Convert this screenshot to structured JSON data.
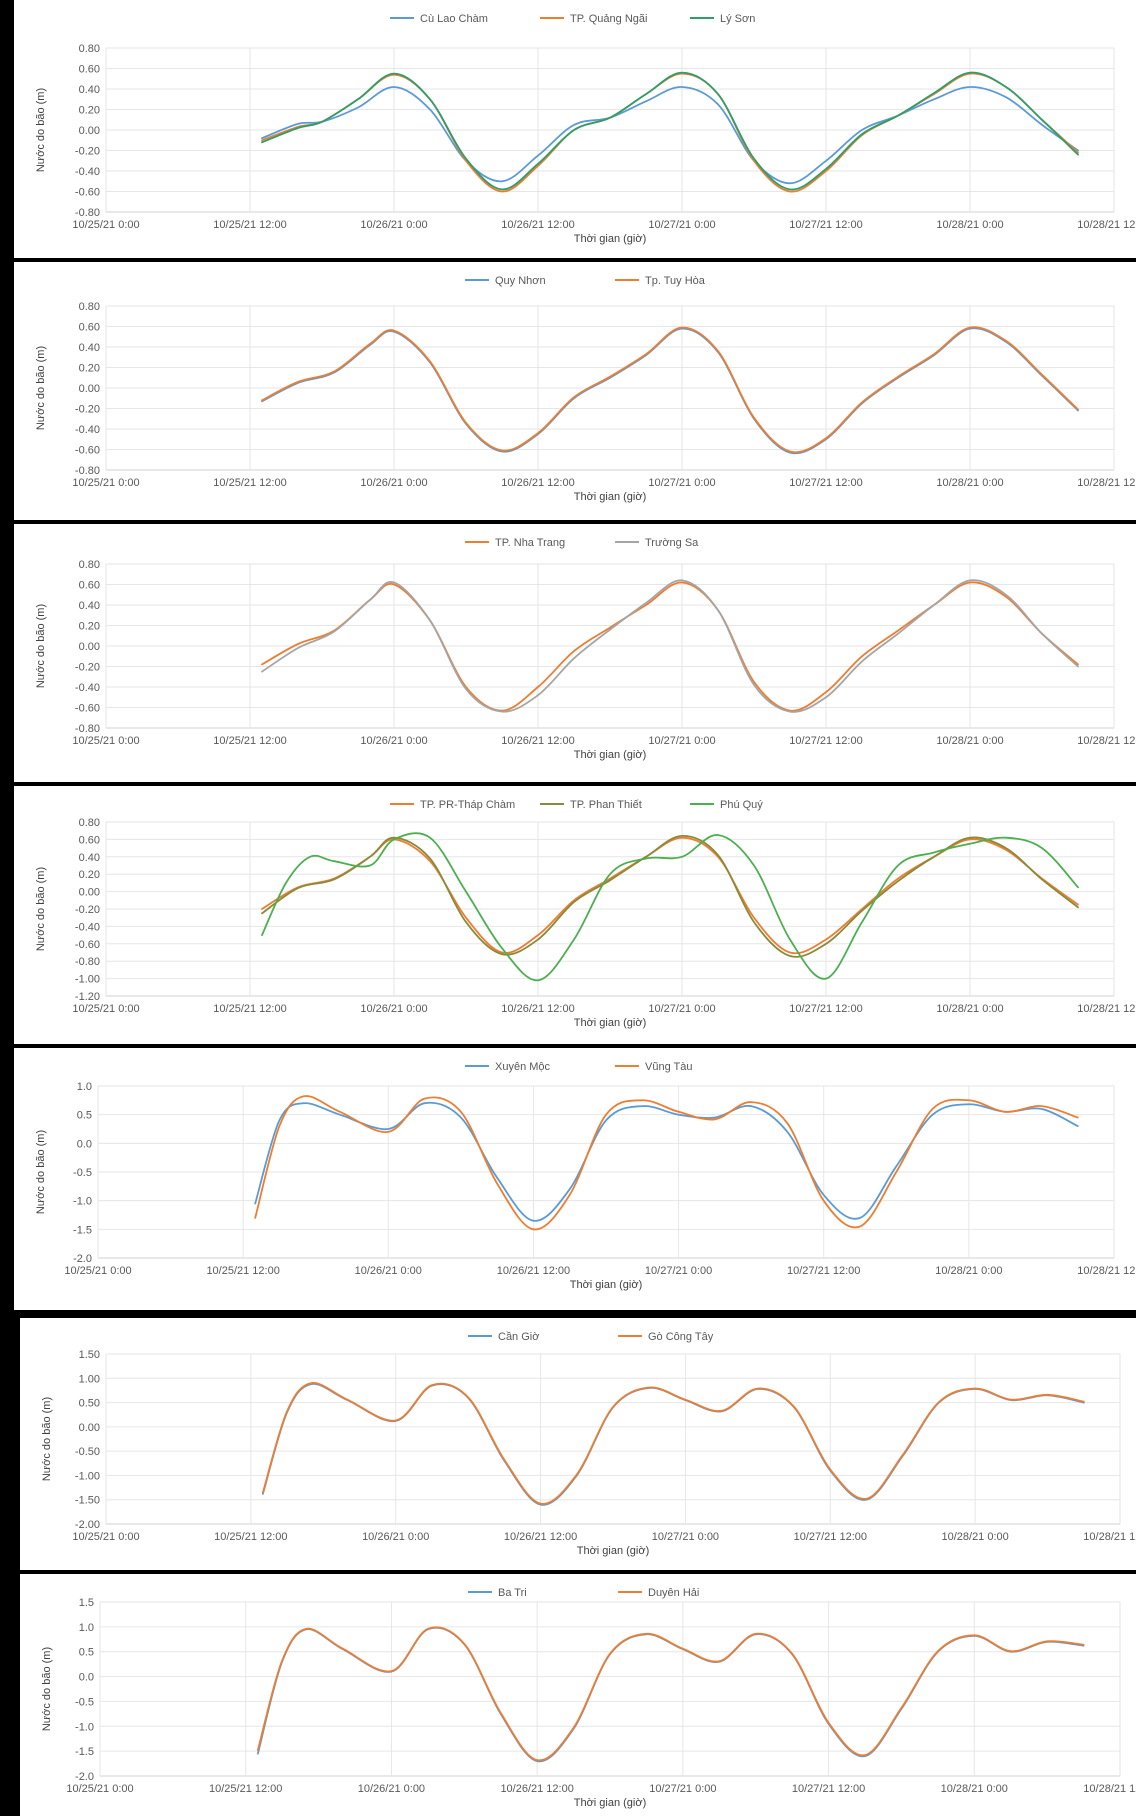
{
  "chart_data": [
    {
      "type": "line",
      "legend_position": "top",
      "xlabel": "Thời gian (giờ)",
      "ylabel": "Nước do bão (m)",
      "x_ticks": [
        "10/25/21 0:00",
        "10/25/21 12:00",
        "10/26/21 0:00",
        "10/26/21 12:00",
        "10/27/21 0:00",
        "10/27/21 12:00",
        "10/28/21 0:00",
        "10/28/21 12:00"
      ],
      "y_ticks": [
        "0.80",
        "0.60",
        "0.40",
        "0.20",
        "0.00",
        "-0.20",
        "-0.40",
        "-0.60",
        "-0.80"
      ],
      "ylim": [
        -0.8,
        0.8
      ],
      "series": [
        {
          "name": "Cù Lao Chàm",
          "color": "#5b9bd5",
          "x": [
            13,
            16,
            18,
            21,
            24,
            27,
            30,
            33,
            36,
            39,
            42,
            45,
            48,
            51,
            54,
            57,
            60,
            63,
            66,
            69,
            72,
            75,
            78,
            81
          ],
          "values": [
            -0.08,
            0.06,
            0.08,
            0.22,
            0.42,
            0.2,
            -0.3,
            -0.5,
            -0.25,
            0.05,
            0.12,
            0.28,
            0.42,
            0.25,
            -0.3,
            -0.52,
            -0.3,
            0.0,
            0.14,
            0.3,
            0.42,
            0.32,
            0.05,
            -0.2
          ]
        },
        {
          "name": "TP. Quảng Ngãi",
          "color": "#ed7d31",
          "x": [
            13,
            16,
            18,
            21,
            24,
            27,
            30,
            33,
            36,
            39,
            42,
            45,
            48,
            51,
            54,
            57,
            60,
            63,
            66,
            69,
            72,
            75,
            78,
            81
          ],
          "values": [
            -0.1,
            0.03,
            0.08,
            0.3,
            0.54,
            0.3,
            -0.3,
            -0.6,
            -0.35,
            0.0,
            0.12,
            0.35,
            0.55,
            0.35,
            -0.3,
            -0.6,
            -0.4,
            -0.05,
            0.14,
            0.35,
            0.55,
            0.42,
            0.1,
            -0.22
          ]
        },
        {
          "name": "Lý Sơn",
          "color": "#2e9e6b",
          "x": [
            13,
            16,
            18,
            21,
            24,
            27,
            30,
            33,
            36,
            39,
            42,
            45,
            48,
            51,
            54,
            57,
            60,
            63,
            66,
            69,
            72,
            75,
            78,
            81
          ],
          "values": [
            -0.12,
            0.02,
            0.08,
            0.3,
            0.55,
            0.3,
            -0.28,
            -0.58,
            -0.33,
            0.0,
            0.12,
            0.35,
            0.56,
            0.35,
            -0.28,
            -0.58,
            -0.38,
            -0.04,
            0.14,
            0.36,
            0.56,
            0.42,
            0.1,
            -0.24
          ]
        }
      ]
    },
    {
      "type": "line",
      "legend_position": "top",
      "xlabel": "Thời gian (giờ)",
      "ylabel": "Nước do bão (m)",
      "x_ticks": [
        "10/25/21 0:00",
        "10/25/21 12:00",
        "10/26/21 0:00",
        "10/26/21 12:00",
        "10/27/21 0:00",
        "10/27/21 12:00",
        "10/28/21 0:00",
        "10/28/21 12:00"
      ],
      "y_ticks": [
        "0.80",
        "0.60",
        "0.40",
        "0.20",
        "0.00",
        "-0.20",
        "-0.40",
        "-0.60",
        "-0.80"
      ],
      "ylim": [
        -0.8,
        0.8
      ],
      "series": [
        {
          "name": "Quy Nhơn",
          "color": "#5b9bd5",
          "x": [
            13,
            16,
            19,
            22,
            24,
            27,
            30,
            33,
            36,
            39,
            42,
            45,
            48,
            51,
            54,
            57,
            60,
            63,
            66,
            69,
            72,
            75,
            78,
            81
          ],
          "values": [
            -0.13,
            0.05,
            0.15,
            0.42,
            0.55,
            0.25,
            -0.35,
            -0.62,
            -0.45,
            -0.1,
            0.1,
            0.32,
            0.58,
            0.35,
            -0.3,
            -0.63,
            -0.5,
            -0.15,
            0.1,
            0.32,
            0.58,
            0.45,
            0.12,
            -0.22
          ]
        },
        {
          "name": "Tp. Tuy Hòa",
          "color": "#ed7d31",
          "x": [
            13,
            16,
            19,
            22,
            24,
            27,
            30,
            33,
            36,
            39,
            42,
            45,
            48,
            51,
            54,
            57,
            60,
            63,
            66,
            69,
            72,
            75,
            78,
            81
          ],
          "values": [
            -0.12,
            0.06,
            0.16,
            0.43,
            0.56,
            0.26,
            -0.34,
            -0.61,
            -0.44,
            -0.09,
            0.11,
            0.33,
            0.59,
            0.36,
            -0.29,
            -0.62,
            -0.49,
            -0.14,
            0.11,
            0.33,
            0.59,
            0.46,
            0.13,
            -0.21
          ]
        }
      ]
    },
    {
      "type": "line",
      "legend_position": "top",
      "xlabel": "Thời gian (giờ)",
      "ylabel": "Nước do bão (m)",
      "x_ticks": [
        "10/25/21 0:00",
        "10/25/21 12:00",
        "10/26/21 0:00",
        "10/26/21 12:00",
        "10/27/21 0:00",
        "10/27/21 12:00",
        "10/28/21 0:00",
        "10/28/21 12:00"
      ],
      "y_ticks": [
        "0.80",
        "0.60",
        "0.40",
        "0.20",
        "0.00",
        "-0.20",
        "-0.40",
        "-0.60",
        "-0.80"
      ],
      "ylim": [
        -0.8,
        0.8
      ],
      "series": [
        {
          "name": "TP. Nha Trang",
          "color": "#ed7d31",
          "x": [
            13,
            16,
            19,
            22,
            24,
            27,
            30,
            33,
            36,
            39,
            42,
            45,
            48,
            51,
            54,
            57,
            60,
            63,
            66,
            69,
            72,
            75,
            78,
            81
          ],
          "values": [
            -0.18,
            0.02,
            0.15,
            0.45,
            0.6,
            0.25,
            -0.4,
            -0.63,
            -0.4,
            -0.05,
            0.18,
            0.4,
            0.62,
            0.35,
            -0.35,
            -0.63,
            -0.45,
            -0.1,
            0.15,
            0.4,
            0.62,
            0.48,
            0.12,
            -0.18
          ]
        },
        {
          "name": "Trường Sa",
          "color": "#a5a5a5",
          "x": [
            13,
            16,
            19,
            22,
            24,
            27,
            30,
            33,
            36,
            39,
            42,
            45,
            48,
            51,
            54,
            57,
            60,
            63,
            66,
            69,
            72,
            75,
            78,
            81
          ],
          "values": [
            -0.25,
            -0.02,
            0.14,
            0.45,
            0.62,
            0.25,
            -0.42,
            -0.64,
            -0.48,
            -0.12,
            0.16,
            0.42,
            0.64,
            0.35,
            -0.38,
            -0.64,
            -0.5,
            -0.15,
            0.12,
            0.4,
            0.64,
            0.5,
            0.12,
            -0.2
          ]
        }
      ]
    },
    {
      "type": "line",
      "legend_position": "top",
      "xlabel": "Thời gian (giờ)",
      "ylabel": "Nước do bão (m)",
      "x_ticks": [
        "10/25/21 0:00",
        "10/25/21 12:00",
        "10/26/21 0:00",
        "10/26/21 12:00",
        "10/27/21 0:00",
        "10/27/21 12:00",
        "10/28/21 0:00",
        "10/28/21 12:00"
      ],
      "y_ticks": [
        "0.80",
        "0.60",
        "0.40",
        "0.20",
        "0.00",
        "-0.20",
        "-0.40",
        "-0.60",
        "-0.80",
        "-1.00",
        "-1.20"
      ],
      "ylim": [
        -1.2,
        0.8
      ],
      "series": [
        {
          "name": "TP. PR-Tháp Chàm",
          "color": "#ed7d31",
          "x": [
            13,
            16,
            19,
            22,
            24,
            27,
            30,
            33,
            36,
            39,
            42,
            45,
            48,
            51,
            54,
            57,
            60,
            63,
            66,
            69,
            72,
            75,
            78,
            81
          ],
          "values": [
            -0.2,
            0.05,
            0.15,
            0.4,
            0.6,
            0.35,
            -0.3,
            -0.7,
            -0.5,
            -0.1,
            0.15,
            0.4,
            0.62,
            0.4,
            -0.3,
            -0.7,
            -0.55,
            -0.2,
            0.15,
            0.4,
            0.6,
            0.48,
            0.15,
            -0.15
          ]
        },
        {
          "name": "TP. Phan Thiết",
          "color": "#8a8a3a",
          "x": [
            13,
            16,
            19,
            22,
            24,
            27,
            30,
            33,
            36,
            39,
            42,
            45,
            48,
            51,
            54,
            57,
            60,
            63,
            66,
            69,
            72,
            75,
            78,
            81
          ],
          "values": [
            -0.25,
            0.04,
            0.14,
            0.4,
            0.62,
            0.38,
            -0.35,
            -0.72,
            -0.55,
            -0.12,
            0.13,
            0.4,
            0.64,
            0.42,
            -0.35,
            -0.74,
            -0.6,
            -0.22,
            0.12,
            0.4,
            0.62,
            0.5,
            0.14,
            -0.18
          ]
        },
        {
          "name": "Phú Quý",
          "color": "#4caf50",
          "x": [
            13,
            15,
            17,
            19,
            22,
            24,
            27,
            30,
            33,
            36,
            39,
            42,
            45,
            48,
            51,
            54,
            57,
            60,
            63,
            66,
            69,
            72,
            75,
            78,
            81
          ],
          "values": [
            -0.5,
            0.1,
            0.4,
            0.35,
            0.3,
            0.6,
            0.62,
            0.0,
            -0.65,
            -1.02,
            -0.55,
            0.2,
            0.38,
            0.4,
            0.65,
            0.3,
            -0.55,
            -1.0,
            -0.35,
            0.3,
            0.45,
            0.55,
            0.62,
            0.5,
            0.05
          ]
        }
      ]
    },
    {
      "type": "line",
      "legend_position": "top",
      "xlabel": "Thời gian (giờ)",
      "ylabel": "Nước do bão (m)",
      "x_ticks": [
        "10/25/21 0:00",
        "10/25/21 12:00",
        "10/26/21 0:00",
        "10/26/21 12:00",
        "10/27/21 0:00",
        "10/27/21 12:00",
        "10/28/21 0:00",
        "10/28/21 12:00"
      ],
      "y_ticks": [
        "1.0",
        "0.5",
        "0.0",
        "-0.5",
        "-1.0",
        "-1.5",
        "-2.0"
      ],
      "ylim": [
        -2.0,
        1.0
      ],
      "series": [
        {
          "name": "Xuyên Mộc",
          "color": "#5b9bd5",
          "x": [
            13,
            15,
            17,
            20,
            24,
            27,
            30,
            33,
            36,
            39,
            42,
            45,
            48,
            51,
            54,
            57,
            60,
            63,
            66,
            69,
            72,
            75,
            78,
            81
          ],
          "values": [
            -1.05,
            0.4,
            0.7,
            0.5,
            0.25,
            0.7,
            0.45,
            -0.6,
            -1.35,
            -0.8,
            0.4,
            0.65,
            0.5,
            0.45,
            0.65,
            0.2,
            -0.9,
            -1.3,
            -0.4,
            0.5,
            0.68,
            0.55,
            0.6,
            0.3
          ]
        },
        {
          "name": "Vũng Tàu",
          "color": "#ed7d31",
          "x": [
            13,
            15,
            17,
            20,
            24,
            27,
            30,
            33,
            36,
            39,
            42,
            45,
            48,
            51,
            54,
            57,
            60,
            63,
            66,
            69,
            72,
            75,
            78,
            81
          ],
          "values": [
            -1.3,
            0.3,
            0.82,
            0.55,
            0.2,
            0.78,
            0.55,
            -0.7,
            -1.5,
            -0.9,
            0.5,
            0.75,
            0.55,
            0.42,
            0.72,
            0.35,
            -1.0,
            -1.45,
            -0.5,
            0.6,
            0.75,
            0.55,
            0.65,
            0.45
          ]
        }
      ]
    },
    {
      "type": "line",
      "legend_position": "top",
      "xlabel": "Thời gian (giờ)",
      "ylabel": "Nước do bão (m)",
      "x_ticks": [
        "10/25/21 0:00",
        "10/25/21 12:00",
        "10/26/21 0:00",
        "10/26/21 12:00",
        "10/27/21 0:00",
        "10/27/21 12:00",
        "10/28/21 0:00",
        "10/28/21 12:00"
      ],
      "y_ticks": [
        "1.50",
        "1.00",
        "0.50",
        "0.00",
        "-0.50",
        "-1.00",
        "-1.50",
        "-2.00"
      ],
      "ylim": [
        -2.0,
        1.5
      ],
      "series": [
        {
          "name": "Cần Giờ",
          "color": "#5b9bd5",
          "x": [
            13,
            15,
            17,
            20,
            24,
            27,
            30,
            33,
            36,
            39,
            42,
            45,
            48,
            51,
            54,
            57,
            60,
            63,
            66,
            69,
            72,
            75,
            78,
            81
          ],
          "values": [
            -1.38,
            0.3,
            0.88,
            0.55,
            0.12,
            0.85,
            0.6,
            -0.7,
            -1.6,
            -1.0,
            0.4,
            0.8,
            0.55,
            0.32,
            0.78,
            0.4,
            -0.9,
            -1.5,
            -0.6,
            0.5,
            0.78,
            0.55,
            0.65,
            0.5
          ]
        },
        {
          "name": "Gò Công Tây",
          "color": "#ed7d31",
          "x": [
            13,
            15,
            17,
            20,
            24,
            27,
            30,
            33,
            36,
            39,
            42,
            45,
            48,
            51,
            54,
            57,
            60,
            63,
            66,
            69,
            72,
            75,
            78,
            81
          ],
          "values": [
            -1.35,
            0.32,
            0.9,
            0.56,
            0.13,
            0.86,
            0.61,
            -0.68,
            -1.58,
            -0.98,
            0.41,
            0.81,
            0.56,
            0.33,
            0.79,
            0.41,
            -0.88,
            -1.48,
            -0.58,
            0.51,
            0.79,
            0.56,
            0.66,
            0.52
          ]
        }
      ]
    },
    {
      "type": "line",
      "legend_position": "top",
      "xlabel": "Thời gian (giờ)",
      "ylabel": "Nước do bão (m)",
      "x_ticks": [
        "10/25/21 0:00",
        "10/25/21 12:00",
        "10/26/21 0:00",
        "10/26/21 12:00",
        "10/27/21 0:00",
        "10/27/21 12:00",
        "10/28/21 0:00",
        "10/28/21 12:00"
      ],
      "y_ticks": [
        "1.5",
        "1.0",
        "0.5",
        "0.0",
        "-0.5",
        "-1.0",
        "-1.5",
        "-2.0"
      ],
      "ylim": [
        -2.0,
        1.5
      ],
      "series": [
        {
          "name": "Ba Tri",
          "color": "#5b9bd5",
          "x": [
            13,
            15,
            17,
            20,
            24,
            27,
            30,
            33,
            36,
            39,
            42,
            45,
            48,
            51,
            54,
            57,
            60,
            63,
            66,
            69,
            72,
            75,
            78,
            81
          ],
          "values": [
            -1.55,
            0.3,
            0.95,
            0.55,
            0.1,
            0.95,
            0.65,
            -0.75,
            -1.7,
            -1.05,
            0.45,
            0.85,
            0.55,
            0.3,
            0.85,
            0.45,
            -0.95,
            -1.6,
            -0.65,
            0.5,
            0.82,
            0.5,
            0.7,
            0.62
          ]
        },
        {
          "name": "Duyên Hải",
          "color": "#ed7d31",
          "x": [
            13,
            15,
            17,
            20,
            24,
            27,
            30,
            33,
            36,
            39,
            42,
            45,
            48,
            51,
            54,
            57,
            60,
            63,
            66,
            69,
            72,
            75,
            78,
            81
          ],
          "values": [
            -1.48,
            0.32,
            0.96,
            0.56,
            0.11,
            0.96,
            0.66,
            -0.73,
            -1.68,
            -1.03,
            0.46,
            0.86,
            0.56,
            0.31,
            0.86,
            0.46,
            -0.93,
            -1.58,
            -0.63,
            0.51,
            0.83,
            0.51,
            0.71,
            0.64
          ]
        }
      ]
    }
  ]
}
